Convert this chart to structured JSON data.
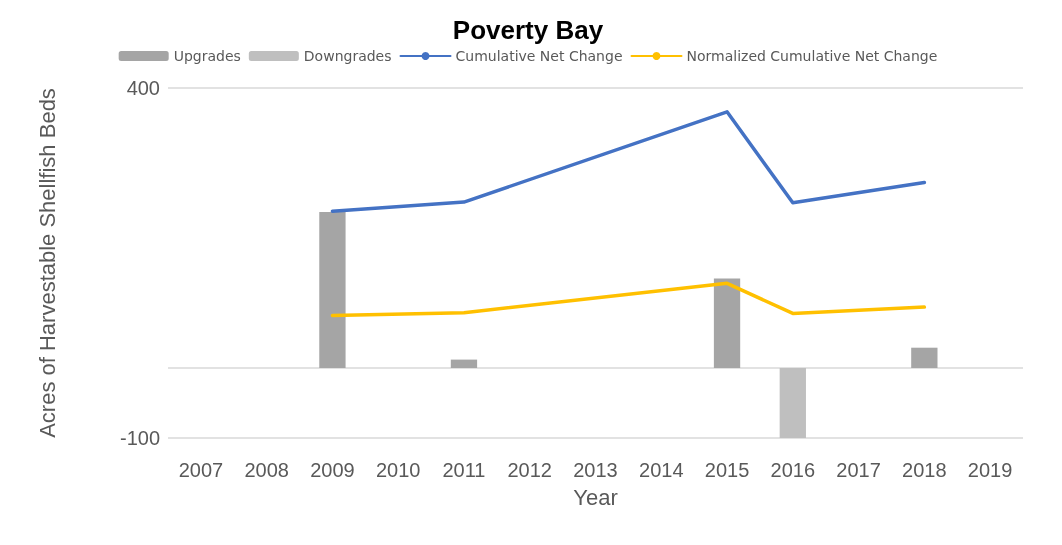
{
  "chart_data": {
    "type": "bar",
    "title": "Poverty Bay",
    "xlabel": "Year",
    "ylabel": "Acres of Harvestable Shellfish Beds",
    "categories": [
      "2007",
      "2008",
      "2009",
      "2010",
      "2011",
      "2012",
      "2013",
      "2014",
      "2015",
      "2016",
      "2017",
      "2018",
      "2019"
    ],
    "series": [
      {
        "name": "Upgrades",
        "color": "#a5a5a5",
        "values": [
          null,
          null,
          223,
          null,
          12,
          null,
          null,
          null,
          128,
          null,
          null,
          29,
          null
        ]
      },
      {
        "name": "Downgrades",
        "color": "#bfbfbf",
        "values": [
          null,
          null,
          null,
          null,
          null,
          null,
          null,
          null,
          null,
          -100,
          null,
          null,
          null
        ]
      },
      {
        "name": "Cumulative Net Change",
        "type": "line",
        "color": "#4472c4",
        "values": [
          null,
          null,
          224,
          null,
          237,
          null,
          null,
          null,
          366,
          236,
          null,
          265,
          null
        ]
      },
      {
        "name": "Normalized Cumulative Net Change",
        "type": "line",
        "color": "#ffc000",
        "values": [
          null,
          null,
          75,
          null,
          79,
          null,
          null,
          null,
          121,
          78,
          null,
          87,
          null
        ]
      }
    ],
    "stacked": true,
    "ylim": [
      -100,
      400
    ],
    "yticks": [
      -100,
      {
        "value": 0,
        "label": null
      },
      400
    ],
    "grid": "y",
    "legend": "top",
    "marker": "none"
  }
}
